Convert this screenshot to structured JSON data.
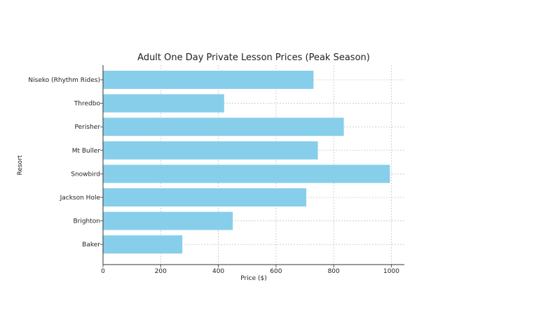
{
  "chart_data": {
    "type": "bar",
    "orientation": "horizontal",
    "title": "Adult One Day Private Lesson Prices (Peak Season)",
    "xlabel": "Price ($)",
    "ylabel": "Resort",
    "categories": [
      "Niseko (Rhythm Rides)",
      "Thredbo",
      "Perisher",
      "Mt Buller",
      "Snowbird",
      "Jackson Hole",
      "Brighton",
      "Baker"
    ],
    "values": [
      730,
      420,
      835,
      745,
      995,
      705,
      450,
      275
    ],
    "xlim": [
      0,
      1045
    ],
    "xticks": [
      0,
      200,
      400,
      600,
      800,
      1000
    ],
    "grid": true,
    "bar_color": "#87ceeb"
  }
}
